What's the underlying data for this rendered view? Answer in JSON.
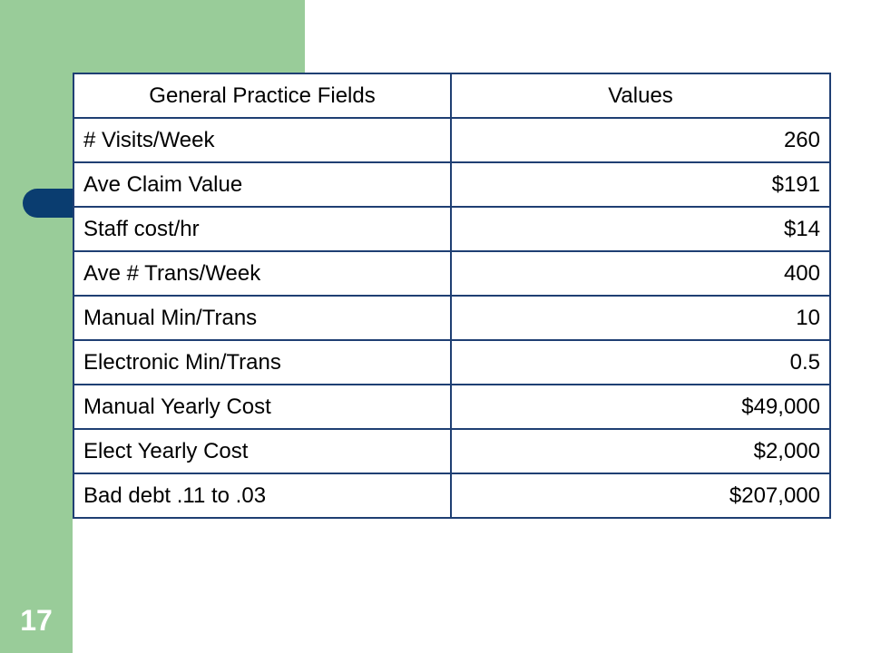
{
  "slide": {
    "number": "17"
  },
  "table": {
    "headers": [
      "General Practice Fields",
      "Values"
    ],
    "rows": [
      {
        "field": "# Visits/Week",
        "value": "260"
      },
      {
        "field": "Ave Claim Value",
        "value": "$191"
      },
      {
        "field": "Staff cost/hr",
        "value": "$14"
      },
      {
        "field": "Ave # Trans/Week",
        "value": "400"
      },
      {
        "field": "Manual Min/Trans",
        "value": "10"
      },
      {
        "field": "Electronic Min/Trans",
        "value": "0.5"
      },
      {
        "field": "Manual Yearly Cost",
        "value": "$49,000"
      },
      {
        "field": "Elect Yearly Cost",
        "value": "$2,000"
      },
      {
        "field": "Bad debt .11 to .03",
        "value": "$207,000"
      }
    ]
  },
  "colors": {
    "sidebar": "#99cc99",
    "accent_pill": "#0a3d70",
    "table_border": "#1f3f73",
    "slide_number": "#ffffff"
  }
}
